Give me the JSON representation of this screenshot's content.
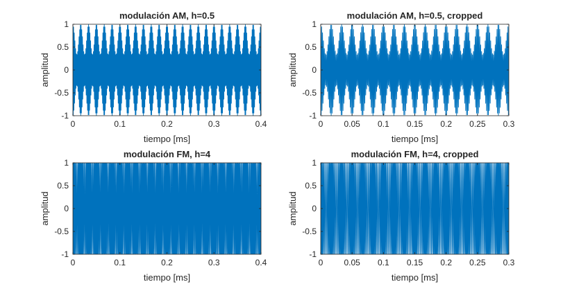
{
  "chart_data": [
    {
      "type": "line",
      "title": "modulación AM, h=0.5",
      "xlabel": "tiempo [ms]",
      "ylabel": "amplitud",
      "xlim": [
        0,
        0.4
      ],
      "ylim": [
        -1,
        1
      ],
      "xticks": [
        "0",
        "0.1",
        "0.2",
        "0.3",
        "0.4"
      ],
      "yticks": [
        "-1",
        "-0.5",
        "0",
        "0.5",
        "1"
      ],
      "series": [
        {
          "color": "#0072BD",
          "modulation": "AM",
          "modulation_index": 0.5,
          "envelope_cycles": 24,
          "peak_amplitude": 1
        }
      ]
    },
    {
      "type": "line",
      "title": "modulación AM, h=0.5, cropped",
      "xlabel": "tiempo [ms]",
      "ylabel": "amplitud",
      "xlim": [
        0,
        0.3
      ],
      "ylim": [
        -1,
        1
      ],
      "xticks": [
        "0",
        "0.05",
        "0.1",
        "0.15",
        "0.2",
        "0.25",
        "0.3"
      ],
      "yticks": [
        "-1",
        "-0.5",
        "0",
        "0.5",
        "1"
      ],
      "series": [
        {
          "color": "#0072BD",
          "modulation": "AM",
          "modulation_index": 0.5,
          "envelope_cycles": 18,
          "peak_amplitude": 1
        }
      ]
    },
    {
      "type": "line",
      "title": "modulación FM, h=4",
      "xlabel": "tiempo [ms]",
      "ylabel": "amplitud",
      "xlim": [
        0,
        0.4
      ],
      "ylim": [
        -1,
        1
      ],
      "xticks": [
        "0",
        "0.1",
        "0.2",
        "0.3",
        "0.4"
      ],
      "yticks": [
        "-1",
        "-0.5",
        "0",
        "0.5",
        "1"
      ],
      "series": [
        {
          "color": "#0072BD",
          "modulation": "FM",
          "modulation_index": 4,
          "modulation_cycles": 24,
          "peak_amplitude": 1
        }
      ]
    },
    {
      "type": "line",
      "title": "modulación FM, h=4, cropped",
      "xlabel": "tiempo [ms]",
      "ylabel": "amplitud",
      "xlim": [
        0,
        0.3
      ],
      "ylim": [
        -1,
        1
      ],
      "xticks": [
        "0",
        "0.05",
        "0.1",
        "0.15",
        "0.2",
        "0.25",
        "0.3"
      ],
      "yticks": [
        "-1",
        "-0.5",
        "0",
        "0.5",
        "1"
      ],
      "series": [
        {
          "color": "#0072BD",
          "modulation": "FM",
          "modulation_index": 4,
          "modulation_cycles": 18,
          "peak_amplitude": 1
        }
      ]
    }
  ]
}
